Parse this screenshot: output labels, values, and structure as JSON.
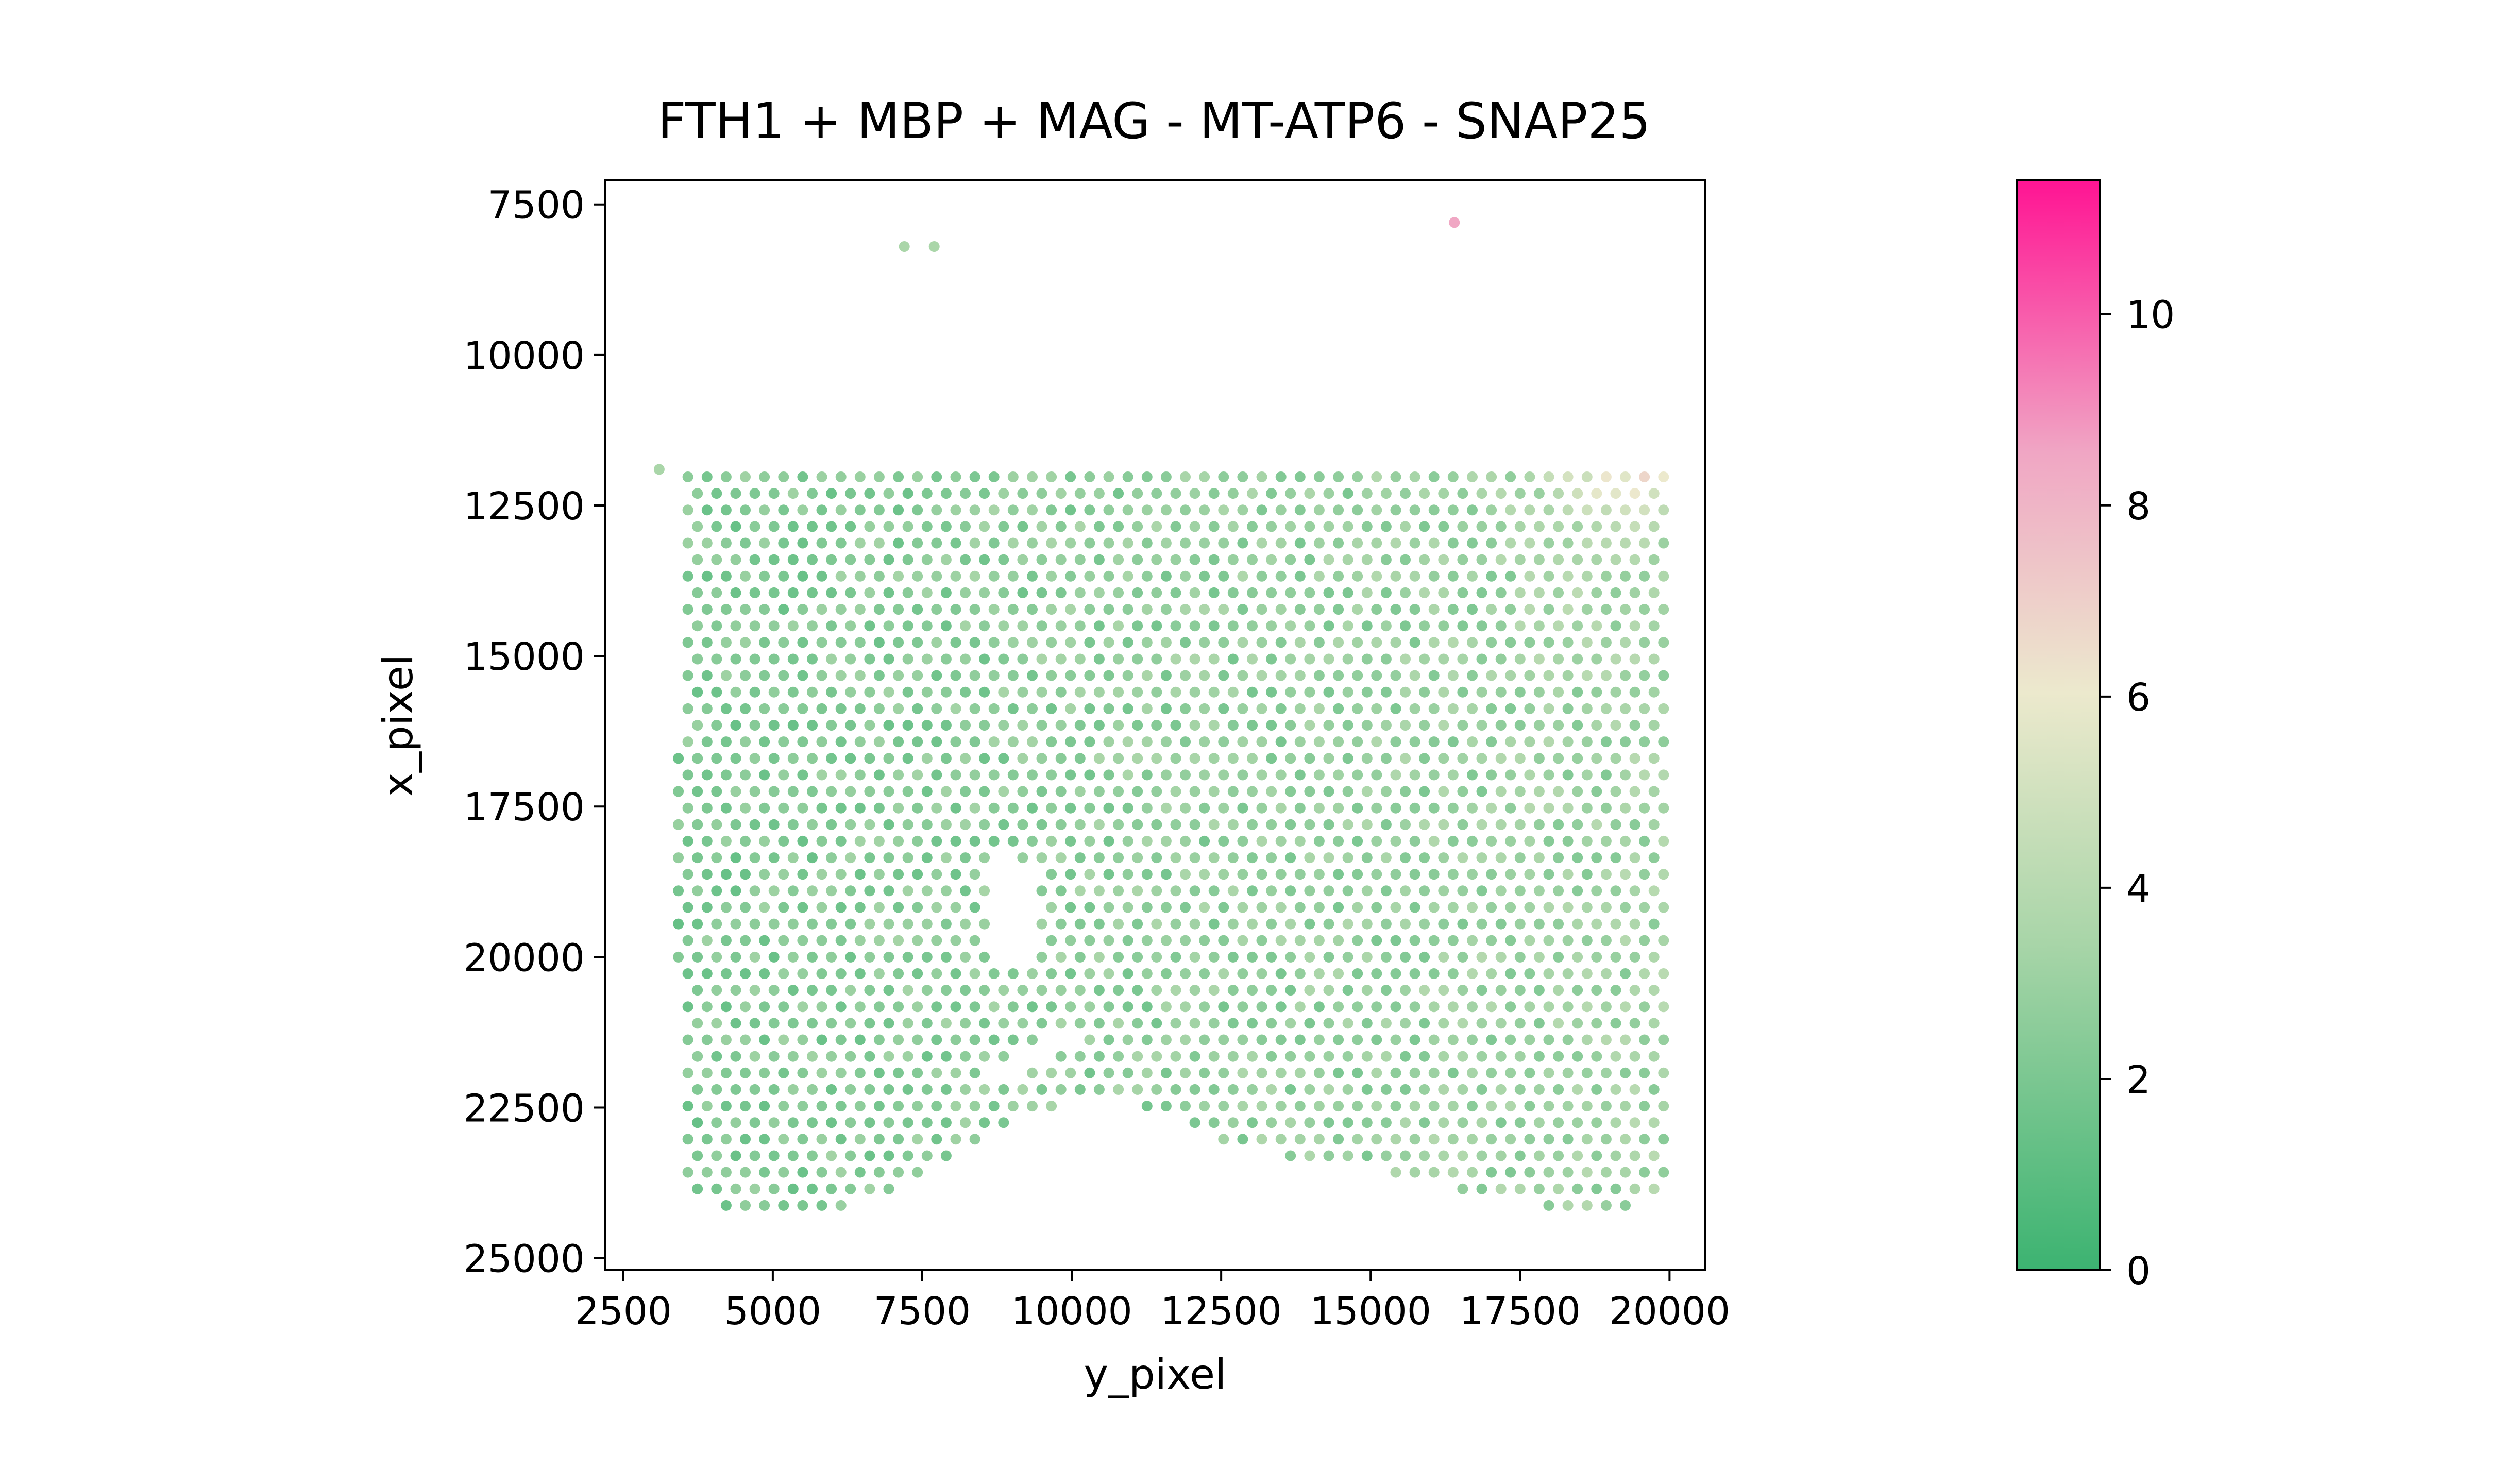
{
  "chart_data": {
    "type": "scatter",
    "title": "FTH1 + MBP + MAG - MT-ATP6 - SNAP25",
    "xlabel": "y_pixel",
    "ylabel": "x_pixel",
    "xlim": [
      2200,
      20600
    ],
    "ylim": [
      25200,
      7100
    ],
    "y_axis_inverted": true,
    "xticks": [
      2500,
      5000,
      7500,
      10000,
      12500,
      15000,
      17500,
      20000
    ],
    "yticks": [
      7500,
      10000,
      12500,
      15000,
      17500,
      20000,
      22500,
      25000
    ],
    "grid": false,
    "spot_layout": "hexagonal grid of capture spots, x spacing ~320, y spacing ~275",
    "value_summary": "mostly 1.5-4.5 (green) across tissue; high values 6-11 (pink) in upper-right corner near y_pixel 14000-20000, x_pixel 8000-15000",
    "colorbar": {
      "min": 0,
      "max": 11.4,
      "ticks": [
        0,
        2,
        4,
        6,
        8,
        10
      ],
      "colors": {
        "low": "#3cb371",
        "mid_low": "#a8d5a8",
        "mid": "#ece9cd",
        "mid_high": "#f0a6c4",
        "high": "#ff1493"
      }
    },
    "colors": {
      "axis": "#000000",
      "background": "#ffffff"
    }
  }
}
